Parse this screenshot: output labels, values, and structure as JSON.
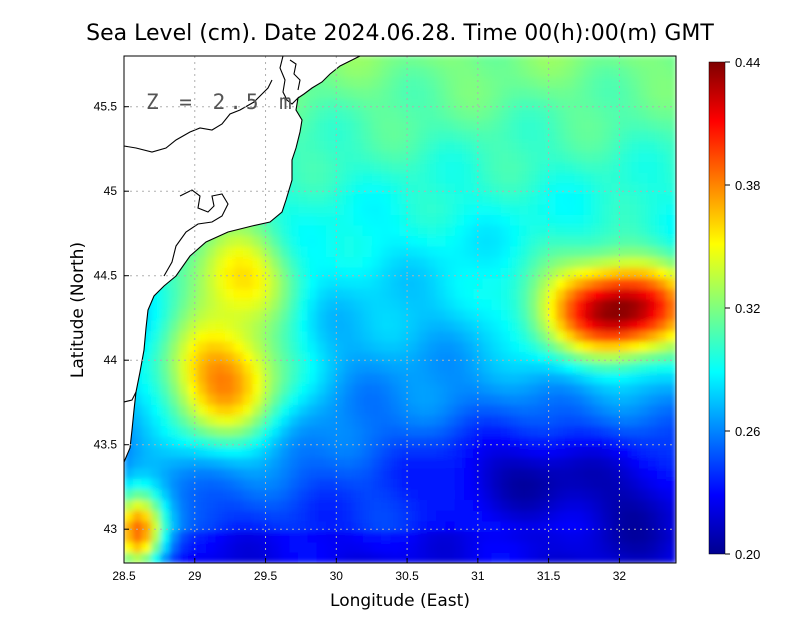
{
  "chart_data": {
    "type": "heatmap",
    "title": "Sea Level (cm). Date 2024.06.28. Time 00(h):00(m) GMT",
    "xlabel": "Longitude (East)",
    "ylabel": "Latitude (North)",
    "annotation": "Z = 2.5 m",
    "xlim": [
      28.5,
      32.4
    ],
    "ylim": [
      42.8,
      45.8
    ],
    "xticks": [
      "28.5",
      "29",
      "29.5",
      "30",
      "30.5",
      "31",
      "31.5",
      "32"
    ],
    "yticks": [
      "43",
      "43.5",
      "44",
      "44.5",
      "45",
      "45.5"
    ],
    "grid": true,
    "colorbar": {
      "min": 0.2,
      "max": 0.44,
      "ticks": [
        "0.44",
        "0.38",
        "0.32",
        "0.26",
        "0.20"
      ],
      "colormap": "jet"
    },
    "features": [
      {
        "label": "high",
        "lon": 32.0,
        "lat": 44.3,
        "value": 0.44
      },
      {
        "label": "low",
        "lon": 31.4,
        "lat": 43.3,
        "value": 0.21
      },
      {
        "label": "low",
        "lon": 32.1,
        "lat": 43.1,
        "value": 0.21
      },
      {
        "label": "coastal-high",
        "lon": 29.2,
        "lat": 43.9,
        "value": 0.38
      },
      {
        "label": "coastal-high",
        "lon": 29.3,
        "lat": 44.5,
        "value": 0.36
      },
      {
        "label": "corner-high",
        "lon": 28.6,
        "lat": 43.0,
        "value": 0.39
      }
    ],
    "colors": {
      "land": "#ffffff",
      "coastline": "#000000",
      "grid": "#b0b0b0"
    }
  }
}
